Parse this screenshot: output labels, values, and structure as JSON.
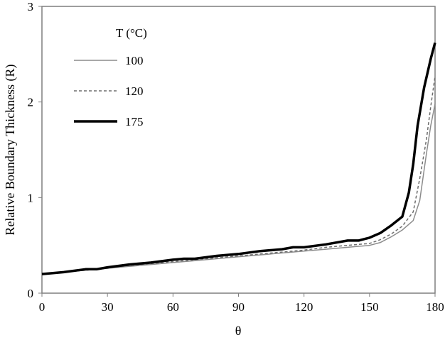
{
  "chart_data": {
    "type": "line",
    "title": "",
    "xlabel": "θ",
    "ylabel": "Relative Boundary Thickness (R)",
    "xlim": [
      0,
      180
    ],
    "ylim": [
      0,
      3
    ],
    "x_ticks": [
      0,
      30,
      60,
      90,
      120,
      150,
      180
    ],
    "y_ticks": [
      0,
      1,
      2,
      3
    ],
    "grid": false,
    "legend_title": "T (°C)",
    "legend_position": "top-left",
    "series": [
      {
        "name": "100",
        "color": "#8c8c8c",
        "dash": "solid",
        "x": [
          0,
          10,
          20,
          30,
          40,
          50,
          60,
          70,
          80,
          90,
          100,
          110,
          120,
          130,
          140,
          145,
          150,
          155,
          160,
          165,
          170,
          173,
          176,
          178,
          180
        ],
        "y": [
          0.2,
          0.22,
          0.24,
          0.26,
          0.28,
          0.3,
          0.32,
          0.34,
          0.36,
          0.38,
          0.4,
          0.42,
          0.44,
          0.46,
          0.48,
          0.49,
          0.5,
          0.53,
          0.59,
          0.66,
          0.76,
          0.97,
          1.45,
          1.75,
          1.98
        ]
      },
      {
        "name": "120",
        "color": "#6e6e6e",
        "dash": "dashed",
        "x": [
          0,
          10,
          20,
          30,
          40,
          50,
          60,
          70,
          80,
          90,
          100,
          110,
          120,
          130,
          140,
          145,
          150,
          155,
          160,
          165,
          170,
          173,
          176,
          178,
          180
        ],
        "y": [
          0.2,
          0.22,
          0.24,
          0.26,
          0.29,
          0.31,
          0.33,
          0.35,
          0.37,
          0.39,
          0.41,
          0.43,
          0.45,
          0.48,
          0.5,
          0.51,
          0.52,
          0.56,
          0.62,
          0.7,
          0.85,
          1.2,
          1.6,
          1.95,
          2.27
        ]
      },
      {
        "name": "175",
        "color": "#000000",
        "dash": "solid",
        "x": [
          0,
          10,
          20,
          25,
          30,
          40,
          50,
          60,
          65,
          70,
          80,
          90,
          100,
          110,
          115,
          120,
          130,
          140,
          145,
          150,
          155,
          160,
          165,
          168,
          170,
          172,
          175,
          178,
          180
        ],
        "y": [
          0.2,
          0.22,
          0.25,
          0.25,
          0.27,
          0.3,
          0.32,
          0.35,
          0.36,
          0.36,
          0.39,
          0.41,
          0.44,
          0.46,
          0.48,
          0.48,
          0.51,
          0.55,
          0.55,
          0.58,
          0.63,
          0.71,
          0.8,
          1.05,
          1.35,
          1.75,
          2.15,
          2.45,
          2.62
        ]
      }
    ]
  }
}
